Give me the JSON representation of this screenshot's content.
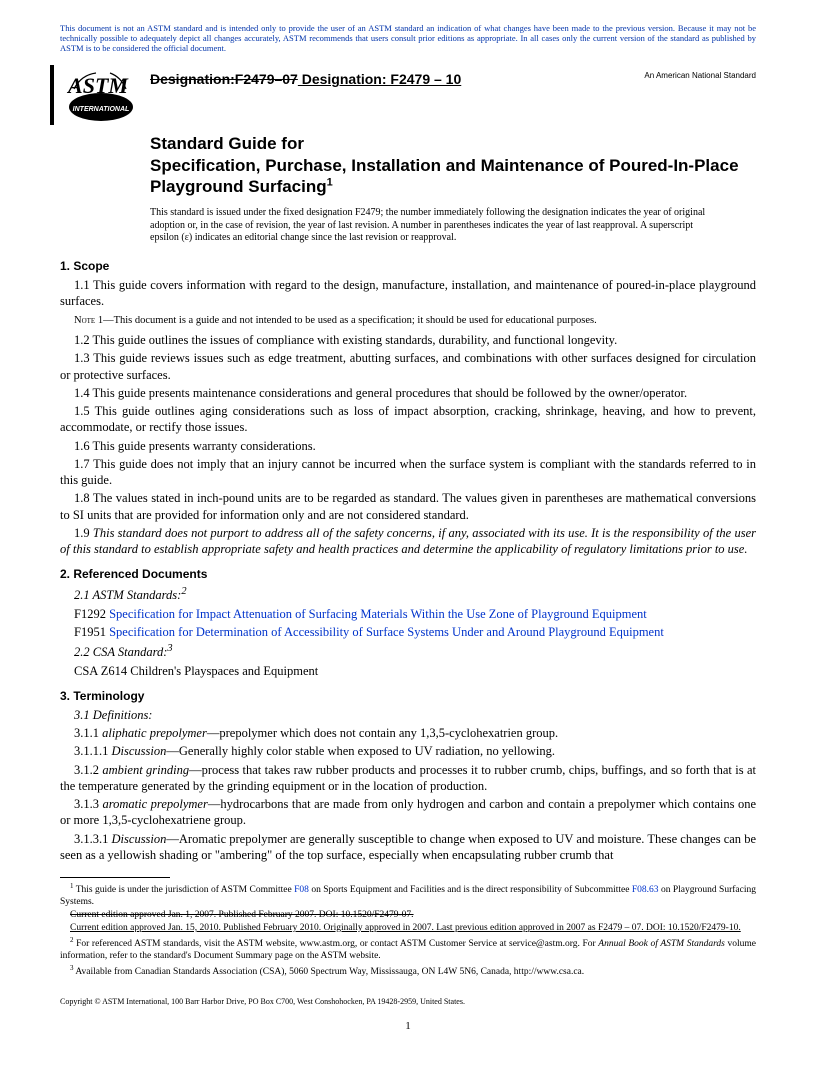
{
  "disclaimer": "This document is not an ASTM standard and is intended only to provide the user of an ASTM standard an indication of what changes have been made to the previous version. Because it may not be technically possible to adequately depict all changes accurately, ASTM recommends that users consult prior editions as appropriate. In all cases only the current version of the standard as published by ASTM is to be considered the official document.",
  "logo_text": "INTERNATIONAL",
  "designation": {
    "old": "Designation:F2479–07",
    "new_label": " Designation: F2479 – 10"
  },
  "national_standard": "An American National Standard",
  "title_line1": "Standard Guide for",
  "title_line2": "Specification, Purchase, Installation and Maintenance of Poured-In-Place Playground Surfacing",
  "title_sup": "1",
  "issuance_note": "This standard is issued under the fixed designation F2479; the number immediately following the designation indicates the year of original adoption or, in the case of revision, the year of last revision. A number in parentheses indicates the year of last reapproval. A superscript epsilon (ε) indicates an editorial change since the last revision or reapproval.",
  "sections": {
    "scope": {
      "heading": "1.  Scope",
      "p1_1": "1.1 This guide covers information with regard to the design, manufacture, installation, and maintenance of poured-in-place playground surfaces.",
      "note1_label": "Note 1—",
      "note1_body": "This document is a guide and not intended to be used as a specification; it should be used for educational purposes.",
      "p1_2": "1.2 This guide outlines the issues of compliance with existing standards, durability, and functional longevity.",
      "p1_3": "1.3 This guide reviews issues such as edge treatment, abutting surfaces, and combinations with other surfaces designed for circulation or protective surfaces.",
      "p1_4": "1.4 This guide presents maintenance considerations and general procedures that should be followed by the owner/operator.",
      "p1_5": "1.5 This guide outlines aging considerations such as loss of impact absorption, cracking, shrinkage, heaving, and how to prevent, accommodate, or rectify those issues.",
      "p1_6": "1.6 This guide presents warranty considerations.",
      "p1_7": "1.7 This guide does not imply that an injury cannot be incurred when the surface system is compliant with the standards referred to in this guide.",
      "p1_8": "1.8 The values stated in inch-pound units are to be regarded as standard. The values given in parentheses are mathematical conversions to SI units that are provided for information only and are not considered standard.",
      "p1_9": "1.9 This standard does not purport to address all of the safety concerns, if any, associated with its use. It is the responsibility of the user of this standard to establish appropriate safety and health practices and determine the applicability of regulatory limitations prior to use."
    },
    "refs": {
      "heading": "2.  Referenced Documents",
      "p2_1": "2.1 ASTM Standards:",
      "p2_1_sup": "2",
      "f1292_label": "F1292  ",
      "f1292_link": "Specification for Impact Attenuation of Surfacing Materials Within the Use Zone of Playground Equipment",
      "f1951_label": "F1951  ",
      "f1951_link": "Specification for Determination of Accessibility of Surface Systems Under and Around Playground Equipment",
      "p2_2": "2.2  CSA Standard:",
      "p2_2_sup": "3",
      "csa": "CSA Z614  Children's Playspaces and Equipment"
    },
    "term": {
      "heading": "3.  Terminology",
      "p3_1": "3.1 Definitions:",
      "p3_1_1_a": "3.1.1 ",
      "p3_1_1_term": "aliphatic prepolymer",
      "p3_1_1_b": "—prepolymer which does not contain any 1,3,5-cyclohexatrien group.",
      "p3_1_1_1_a": "3.1.1.1 ",
      "p3_1_1_1_term": "Discussion",
      "p3_1_1_1_b": "—Generally highly color stable when exposed to UV radiation, no yellowing.",
      "p3_1_2_a": "3.1.2 ",
      "p3_1_2_term": "ambient grinding",
      "p3_1_2_b": "—process that takes raw rubber products and processes it to rubber crumb, chips, buffings, and so forth that is at the temperature generated by the grinding equipment or in the location of production.",
      "p3_1_3_a": "3.1.3 ",
      "p3_1_3_term": "aromatic prepolymer",
      "p3_1_3_b": "—hydrocarbons that are made from only hydrogen and carbon and contain a prepolymer which contains one or more 1,3,5-cyclohexatriene group.",
      "p3_1_3_1_a": "3.1.3.1 ",
      "p3_1_3_1_term": "Discussion",
      "p3_1_3_1_b": "—Aromatic prepolymer are generally susceptible to change when exposed to UV and moisture. These changes can be seen as a yellowish shading or \"ambering\" of the top surface, especially when encapsulating rubber crumb that"
    }
  },
  "footnotes": {
    "f1_a": " This guide is under the jurisdiction of ASTM Committee ",
    "f1_link1": "F08",
    "f1_b": " on Sports Equipment and Facilities and is the direct responsibility of Subcommittee ",
    "f1_link2": "F08.63",
    "f1_c": " on Playground Surfacing Systems.",
    "f1_strike": "Current edition approved Jan. 1, 2007. Published February 2007. DOI: 10.1520/F2479-07.",
    "f1_under": "Current edition approved Jan. 15, 2010. Published February 2010. Originally approved in 2007. Last previous edition approved in 2007 as F2479 – 07. DOI: 10.1520/F2479-10.",
    "f2_a": " For referenced ASTM standards, visit the ASTM website, www.astm.org, or contact ASTM Customer Service at service@astm.org. For ",
    "f2_b": "Annual Book of ASTM Standards",
    "f2_c": " volume information, refer to the standard's Document Summary page on the ASTM website.",
    "f3": " Available from Canadian Standards Association (CSA), 5060 Spectrum Way, Mississauga, ON L4W 5N6, Canada, http://www.csa.ca."
  },
  "copyright": "Copyright © ASTM International, 100 Barr Harbor Drive, PO Box C700, West Conshohocken, PA 19428-2959, United States.",
  "page_number": "1"
}
